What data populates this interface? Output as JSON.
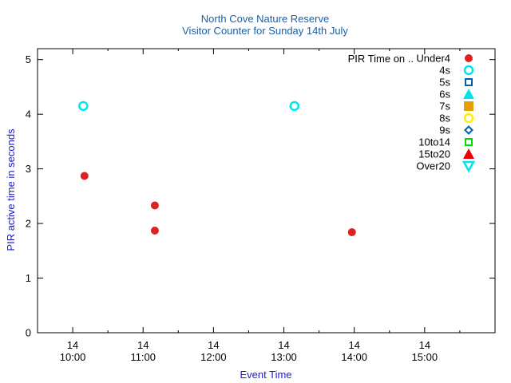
{
  "chart_data": {
    "type": "scatter",
    "title": "North Cove Nature Reserve",
    "subtitle": "Visitor Counter for Sunday 14th July",
    "xlabel": "Event Time",
    "ylabel": "PIR active time in seconds",
    "xlim": [
      "09:30",
      "16:00"
    ],
    "ylim": [
      0,
      5.2
    ],
    "x_ticks": [
      {
        "day": "14",
        "time": "10:00"
      },
      {
        "day": "14",
        "time": "11:00"
      },
      {
        "day": "14",
        "time": "12:00"
      },
      {
        "day": "14",
        "time": "13:00"
      },
      {
        "day": "14",
        "time": "14:00"
      },
      {
        "day": "14",
        "time": "15:00"
      }
    ],
    "y_ticks": [
      "0",
      "1",
      "2",
      "3",
      "4",
      "5"
    ],
    "grid": false,
    "legend_placement": "top-right",
    "legend_title": "PIR Time on ..",
    "series": [
      {
        "name": "Under4",
        "marker": "filled-circle",
        "color": "#dd2222",
        "points": [
          {
            "x": "10:10",
            "y": 2.87
          },
          {
            "x": "11:10",
            "y": 2.33
          },
          {
            "x": "11:10",
            "y": 1.87
          },
          {
            "x": "13:58",
            "y": 1.84
          }
        ]
      },
      {
        "name": "4s",
        "marker": "open-circle",
        "color": "#00e5ee",
        "points": [
          {
            "x": "10:09",
            "y": 4.15
          },
          {
            "x": "13:09",
            "y": 4.15
          }
        ]
      },
      {
        "name": "5s",
        "marker": "open-square",
        "color": "#0060ad",
        "points": []
      },
      {
        "name": "6s",
        "marker": "filled-triangle",
        "color": "#00e5ee",
        "points": []
      },
      {
        "name": "7s",
        "marker": "filled-square",
        "color": "#e69f00",
        "points": []
      },
      {
        "name": "8s",
        "marker": "open-circle",
        "color": "#ffee00",
        "points": []
      },
      {
        "name": "9s",
        "marker": "open-diamond",
        "color": "#0060ad",
        "points": []
      },
      {
        "name": "10to14",
        "marker": "open-square",
        "color": "#00dd00",
        "points": []
      },
      {
        "name": "15to20",
        "marker": "filled-triangle",
        "color": "#ee0000",
        "points": []
      },
      {
        "name": "Over20",
        "marker": "open-triangle-down",
        "color": "#00e5ee",
        "points": []
      }
    ]
  }
}
